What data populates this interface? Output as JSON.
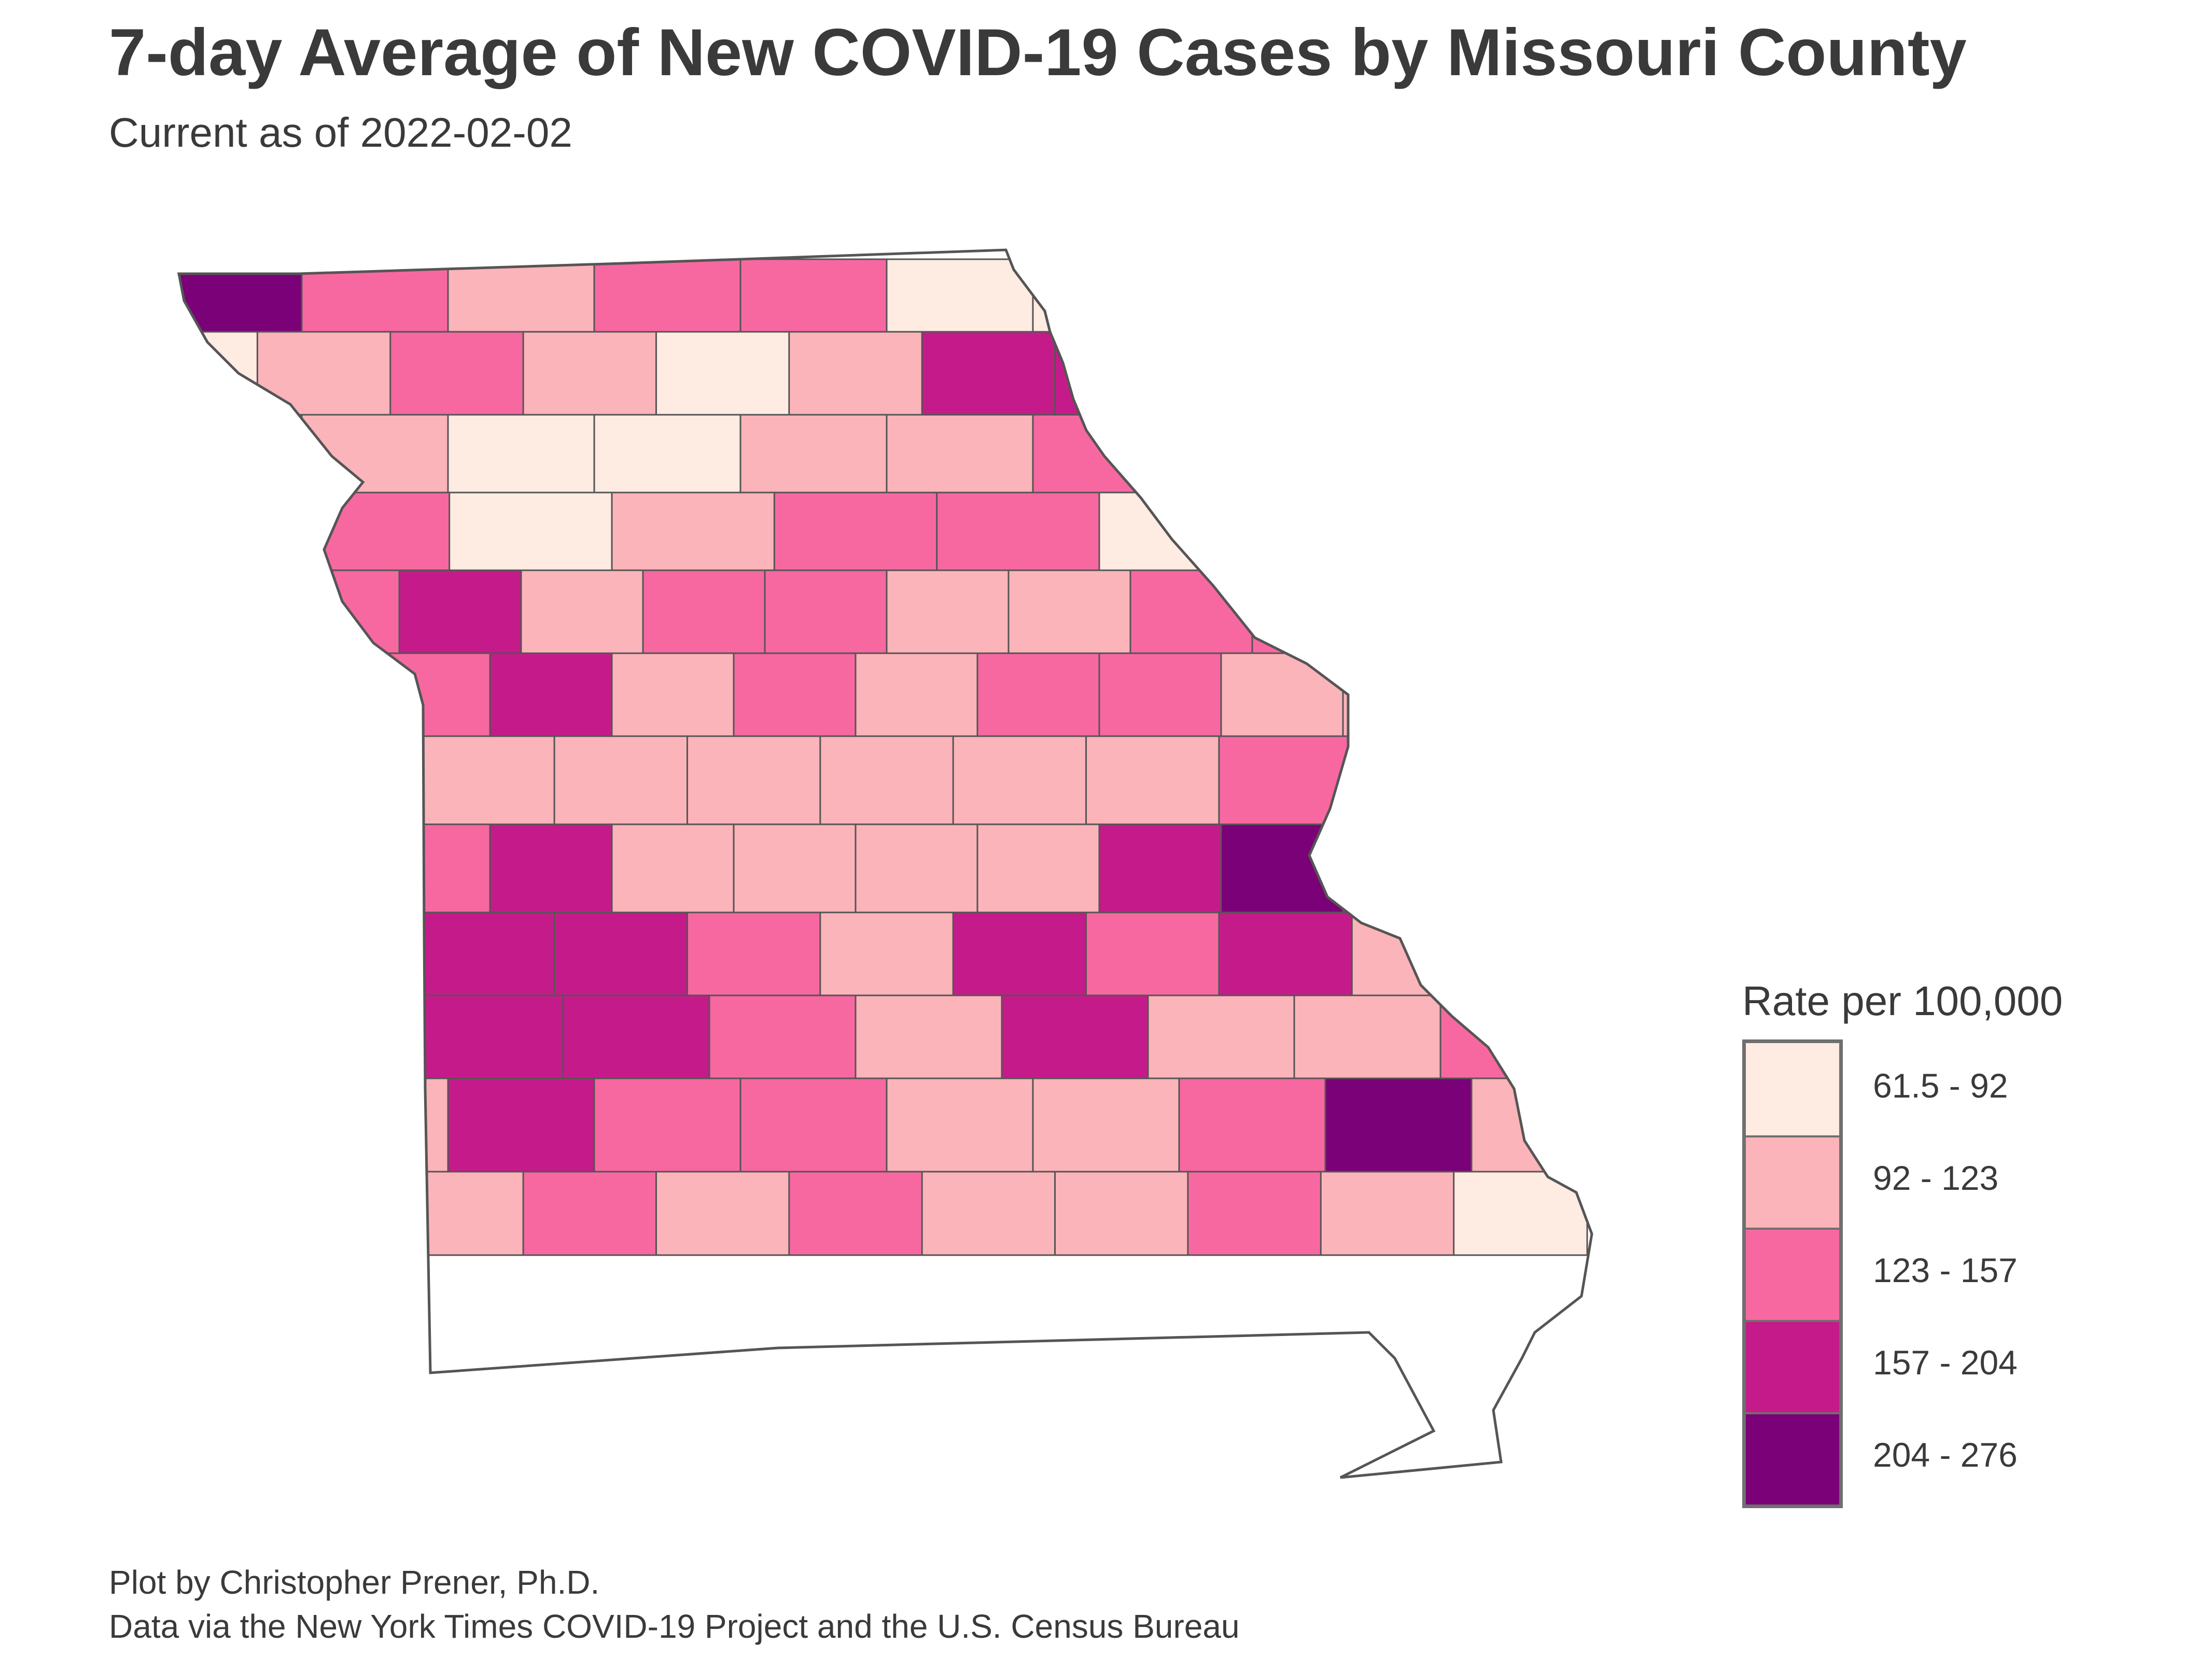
{
  "title": "7-day Average of New COVID-19 Cases by Missouri County",
  "subtitle": "Current as of 2022-02-02",
  "legend": {
    "title": "Rate per 100,000",
    "items": [
      {
        "label": "61.5 - 92",
        "color": "#feebe2"
      },
      {
        "label": "92 - 123",
        "color": "#fbb4b9"
      },
      {
        "label": "123 - 157",
        "color": "#f768a1"
      },
      {
        "label": "157 - 204",
        "color": "#c51b8a"
      },
      {
        "label": "204 - 276",
        "color": "#7a0177"
      }
    ]
  },
  "caption": {
    "line1": "Plot by Christopher Prener, Ph.D.",
    "line2": "Data via the New York Times COVID-19 Project and the U.S. Census Bureau"
  },
  "map": {
    "region": "Missouri",
    "county_classes": [
      4,
      2,
      1,
      2,
      2,
      0,
      0,
      0,
      0,
      3,
      0,
      1,
      2,
      1,
      0,
      1,
      3,
      3,
      2,
      2,
      4,
      2,
      1,
      0,
      0,
      1,
      1,
      2,
      2,
      1,
      2,
      3,
      2,
      0,
      1,
      2,
      2,
      0,
      1,
      2,
      2,
      2,
      3,
      1,
      2,
      2,
      1,
      1,
      2,
      2,
      1,
      0,
      2,
      1,
      2,
      3,
      1,
      2,
      1,
      2,
      2,
      1,
      1,
      0,
      2,
      3,
      1,
      1,
      1,
      1,
      1,
      1,
      2,
      2,
      0,
      2,
      4,
      2,
      3,
      1,
      1,
      1,
      1,
      3,
      4,
      2,
      2,
      2,
      2,
      3,
      3,
      2,
      1,
      3,
      2,
      3,
      1,
      2,
      2,
      2,
      3,
      3,
      2,
      1,
      3,
      1,
      1,
      2,
      1,
      1,
      3,
      2,
      2,
      1,
      1,
      2,
      4,
      1,
      1,
      1,
      1,
      2,
      1,
      2,
      1,
      1,
      2,
      1,
      0
    ]
  }
}
